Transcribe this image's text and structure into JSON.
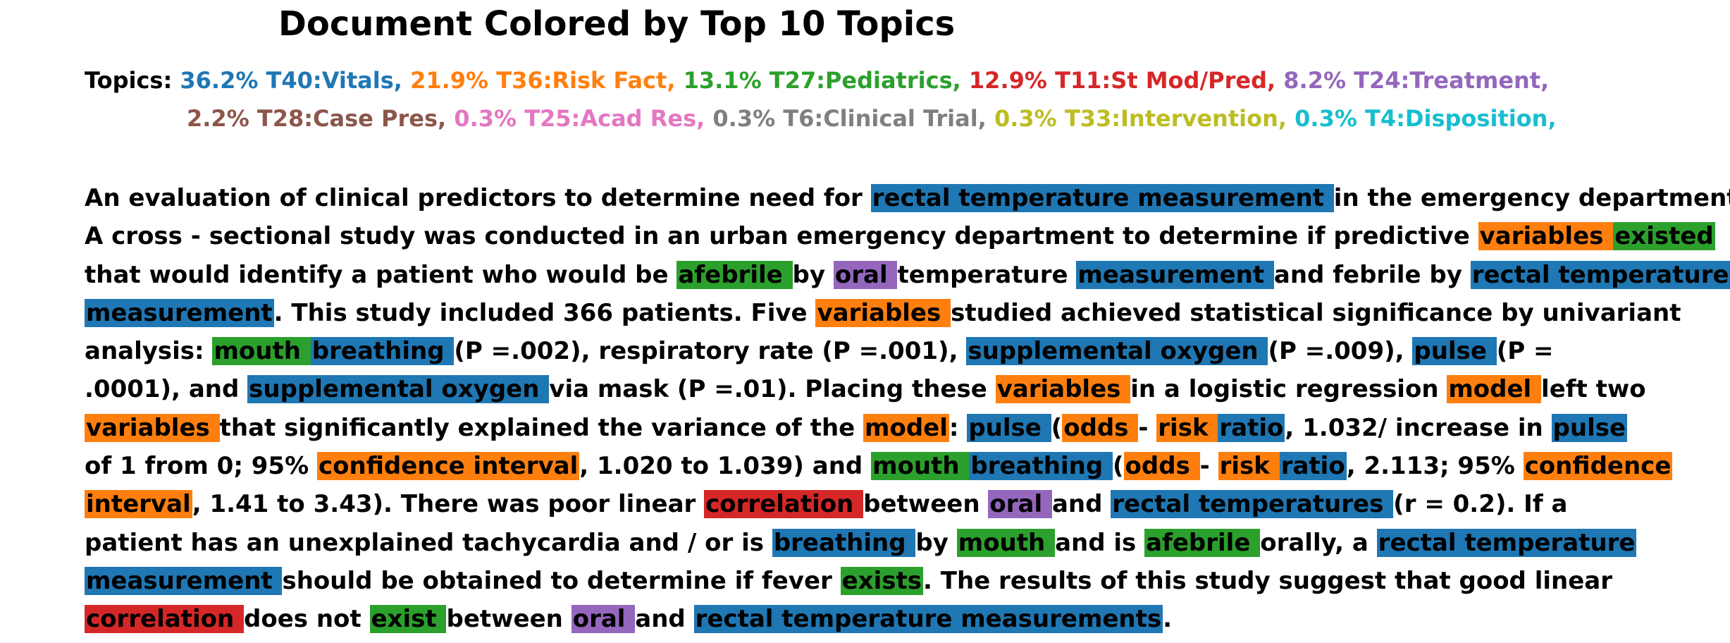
{
  "title": "Document Colored by Top 10 Topics",
  "topics_label": "Topics:",
  "topics": [
    {
      "text": "36.2% T40:Vitals,",
      "color": "#1f77b4"
    },
    {
      "text": "21.9% T36:Risk Fact,",
      "color": "#ff7f0e"
    },
    {
      "text": "13.1% T27:Pediatrics,",
      "color": "#2ca02c"
    },
    {
      "text": "12.9% T11:St Mod/Pred,",
      "color": "#d62728"
    },
    {
      "text": "8.2% T24:Treatment,",
      "color": "#9467bd"
    },
    {
      "text": "2.2% T28:Case Pres,",
      "color": "#8c564b"
    },
    {
      "text": "0.3% T25:Acad Res,",
      "color": "#e377c2"
    },
    {
      "text": "0.3% T6:Clinical Trial,",
      "color": "#7f7f7f"
    },
    {
      "text": "0.3% T33:Intervention,",
      "color": "#bcbd22"
    },
    {
      "text": "0.3% T4:Disposition,",
      "color": "#17becf"
    }
  ],
  "topics_line_breaks": [
    5
  ],
  "colors": {
    "blue": "#1f77b4",
    "orange": "#ff7f0e",
    "green": "#2ca02c",
    "red": "#d62728",
    "purple": "#9467bd"
  },
  "body_lines": [
    [
      [
        "An evaluation of clinical predictors to determine need for ",
        null
      ],
      [
        "rectal temperature measurement ",
        "blue"
      ],
      [
        "in the emergency department.",
        null
      ]
    ],
    [
      [
        "A cross - sectional study was conducted in an urban emergency department to determine if predictive ",
        null
      ],
      [
        "variables ",
        "orange"
      ],
      [
        "existed ",
        "green"
      ]
    ],
    [
      [
        "that would identify a patient who would be ",
        null
      ],
      [
        "afebrile ",
        "green"
      ],
      [
        "by ",
        null
      ],
      [
        "oral ",
        "purple"
      ],
      [
        "temperature ",
        null
      ],
      [
        "measurement ",
        "blue"
      ],
      [
        "and febrile by ",
        null
      ],
      [
        "rectal temperature ",
        "blue"
      ]
    ],
    [
      [
        "measurement",
        "blue"
      ],
      [
        ". This study included 366 patients. Five ",
        null
      ],
      [
        "variables ",
        "orange"
      ],
      [
        "studied achieved statistical significance by univariant",
        null
      ]
    ],
    [
      [
        "analysis: ",
        null
      ],
      [
        "mouth ",
        "green"
      ],
      [
        "breathing ",
        "blue"
      ],
      [
        "(P =.002), respiratory rate (P =.001), ",
        null
      ],
      [
        "supplemental oxygen ",
        "blue"
      ],
      [
        "(P =.009), ",
        null
      ],
      [
        "pulse ",
        "blue"
      ],
      [
        "(P =",
        null
      ]
    ],
    [
      [
        ".0001), and ",
        null
      ],
      [
        "supplemental oxygen ",
        "blue"
      ],
      [
        "via mask (P =.01). Placing these ",
        null
      ],
      [
        "variables ",
        "orange"
      ],
      [
        "in a logistic regression ",
        null
      ],
      [
        "model ",
        "orange"
      ],
      [
        "left two",
        null
      ]
    ],
    [
      [
        "variables ",
        "orange"
      ],
      [
        "that significantly explained the variance of the ",
        null
      ],
      [
        "model",
        "orange"
      ],
      [
        ": ",
        null
      ],
      [
        "pulse ",
        "blue"
      ],
      [
        "(",
        null
      ],
      [
        "odds ",
        "orange"
      ],
      [
        "- ",
        null
      ],
      [
        "risk ",
        "orange"
      ],
      [
        "ratio",
        "blue"
      ],
      [
        ", 1.032/ increase in ",
        null
      ],
      [
        "pulse ",
        "blue"
      ]
    ],
    [
      [
        "of 1 from 0; 95% ",
        null
      ],
      [
        "confidence interval",
        "orange"
      ],
      [
        ", 1.020 to 1.039) and ",
        null
      ],
      [
        "mouth ",
        "green"
      ],
      [
        "breathing ",
        "blue"
      ],
      [
        "(",
        null
      ],
      [
        "odds ",
        "orange"
      ],
      [
        "- ",
        null
      ],
      [
        "risk ",
        "orange"
      ],
      [
        "ratio",
        "blue"
      ],
      [
        ", 2.113; 95% ",
        null
      ],
      [
        "confidence ",
        "orange"
      ]
    ],
    [
      [
        "interval",
        "orange"
      ],
      [
        ", 1.41 to 3.43). There was poor linear ",
        null
      ],
      [
        "correlation ",
        "red"
      ],
      [
        "between ",
        null
      ],
      [
        "oral ",
        "purple"
      ],
      [
        "and ",
        null
      ],
      [
        "rectal temperatures ",
        "blue"
      ],
      [
        "(r = 0.2). If a",
        null
      ]
    ],
    [
      [
        "patient has an unexplained tachycardia and / or is ",
        null
      ],
      [
        "breathing ",
        "blue"
      ],
      [
        "by ",
        null
      ],
      [
        "mouth ",
        "green"
      ],
      [
        "and is ",
        null
      ],
      [
        "afebrile ",
        "green"
      ],
      [
        "orally, a ",
        null
      ],
      [
        "rectal temperature ",
        "blue"
      ]
    ],
    [
      [
        "measurement ",
        "blue"
      ],
      [
        "should be obtained to determine if fever ",
        null
      ],
      [
        "exists",
        "green"
      ],
      [
        ". The results of this study suggest that good linear",
        null
      ]
    ],
    [
      [
        "correlation ",
        "red"
      ],
      [
        "does not ",
        null
      ],
      [
        "exist ",
        "green"
      ],
      [
        "between ",
        null
      ],
      [
        "oral ",
        "purple"
      ],
      [
        "and ",
        null
      ],
      [
        "rectal temperature measurements",
        "blue"
      ],
      [
        ".",
        null
      ]
    ]
  ]
}
